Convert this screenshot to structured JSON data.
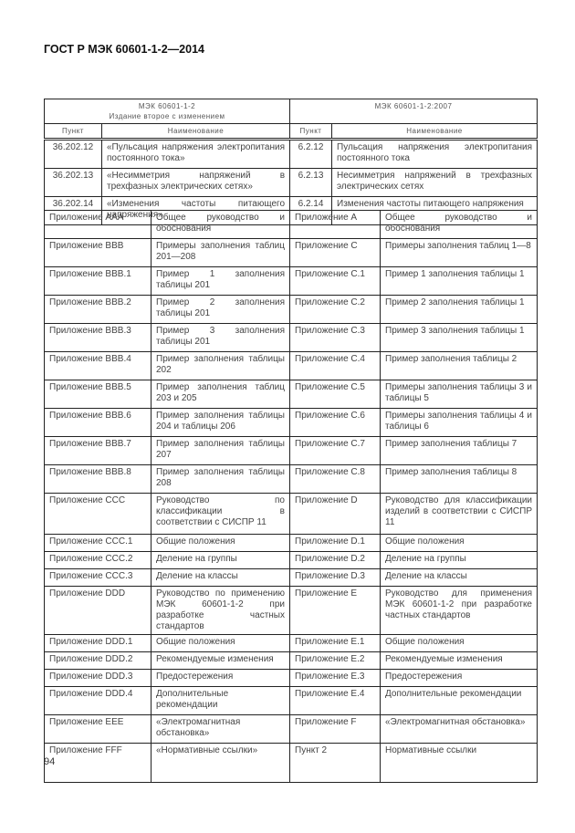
{
  "header": {
    "title": "ГОСТ Р МЭК 60601-1-2—2014"
  },
  "table": {
    "left_header": {
      "line1": "МЭК 60601-1-2",
      "line2": "Издание второе с изменением"
    },
    "right_header": "МЭК 60601-1-2:2007",
    "col_punkt": "Пункт",
    "col_name": "Наименование",
    "clause_rows": [
      {
        "a": "36.202.12",
        "b": "«Пульсация напряжения электропитания постоянного тока»",
        "c": "6.2.12",
        "d": "Пульсация напряжения электропитания постоянного тока"
      },
      {
        "a": "36.202.13",
        "b": "«Несимметрия напряжений в трехфазных электрических сетях»",
        "c": "6.2.13",
        "d": "Несимметрия напряжений в трехфазных электрических сетях"
      },
      {
        "a": "36.202.14",
        "b": "«Изменения частоты питающего напряжения»",
        "c": "6.2.14",
        "d": "Изменения частоты питающего напряжения"
      }
    ],
    "annex_rows": [
      {
        "a": "Приложение AAA",
        "b": "Общее руководство и обоснования",
        "c": "Приложение A",
        "d": "Общее руководство и обоснования"
      },
      {
        "a": "Приложение BBB",
        "b": "Примеры заполнения таблиц 201—208",
        "c": "Приложение C",
        "d": "Примеры заполнения таблиц 1—8"
      },
      {
        "a": "Приложение BBB.1",
        "b": "Пример 1 заполнения таблицы 201",
        "c": "Приложение C.1",
        "d": "Пример 1 заполнения таблицы 1"
      },
      {
        "a": "Приложение BBB.2",
        "b": "Пример 2 заполнения таблицы 201",
        "c": "Приложение C.2",
        "d": "Пример 2 заполнения таблицы 1"
      },
      {
        "a": "Приложение BBB.3",
        "b": "Пример 3 заполнения таблицы 201",
        "c": "Приложение C.3",
        "d": "Пример 3 заполнения таблицы 1"
      },
      {
        "a": "Приложение BBB.4",
        "b": "Пример заполнения таблицы 202",
        "c": "Приложение C.4",
        "d": "Пример заполнения таблицы 2"
      },
      {
        "a": "Приложение BBB.5",
        "b": "Пример заполнения таблиц 203 и 205",
        "c": "Приложение C.5",
        "d": "Примеры заполнения таблицы 3 и таблицы 5"
      },
      {
        "a": "Приложение BBB.6",
        "b": "Пример заполнения таблицы 204 и таблицы 206",
        "c": "Приложение C.6",
        "d": "Примеры заполнения таблицы 4 и таблицы 6"
      },
      {
        "a": "Приложение BBB.7",
        "b": "Пример заполнения таблицы 207",
        "c": "Приложение C.7",
        "d": "Пример заполнения таблицы 7"
      },
      {
        "a": "Приложение BBB.8",
        "b": "Пример заполнения таблицы 208",
        "c": "Приложение C.8",
        "d": "Пример заполнения таблицы 8"
      },
      {
        "a": "Приложение CCC",
        "b": "Руководство по классификации в соответствии с СИСПР 11",
        "c": "Приложение D",
        "d": "Руководство для классификации изделий в соответствии с СИСПР 11"
      },
      {
        "a": "Приложение CCC.1",
        "b": "Общие положения",
        "c": "Приложение D.1",
        "d": "Общие положения"
      },
      {
        "a": "Приложение CCC.2",
        "b": "Деление на группы",
        "c": "Приложение D.2",
        "d": "Деление на группы"
      },
      {
        "a": "Приложение CCC.3",
        "b": "Деление на классы",
        "c": "Приложение D.3",
        "d": "Деление на классы"
      },
      {
        "a": "Приложение DDD",
        "b": "Руководство по применению МЭК 60601-1-2 при разработке частных стандартов",
        "c": "Приложение E",
        "d": "Руководство для применения МЭК 60601-1-2 при разработке частных стандартов"
      },
      {
        "a": "Приложение DDD.1",
        "b": "Общие положения",
        "c": "Приложение E.1",
        "d": "Общие положения"
      },
      {
        "a": "Приложение DDD.2",
        "b": "Рекомендуемые изменения",
        "c": "Приложение E.2",
        "d": "Рекомендуемые изменения"
      },
      {
        "a": "Приложение DDD.3",
        "b": "Предостережения",
        "c": "Приложение E.3",
        "d": "Предостережения"
      },
      {
        "a": "Приложение DDD.4",
        "b": "Дополнительные рекомендации",
        "c": "Приложение E.4",
        "d": "Дополнительные рекомендации"
      },
      {
        "a": "Приложение EEE",
        "b": "«Электромагнитная обстановка»",
        "c": "Приложение F",
        "d": "«Электромагнитная обстановка»"
      },
      {
        "a": "Приложение FFF",
        "b": "«Нормативные ссылки»",
        "c": "Пункт 2",
        "d": "Нормативные ссылки"
      }
    ]
  },
  "footer": {
    "page_number": "94"
  }
}
